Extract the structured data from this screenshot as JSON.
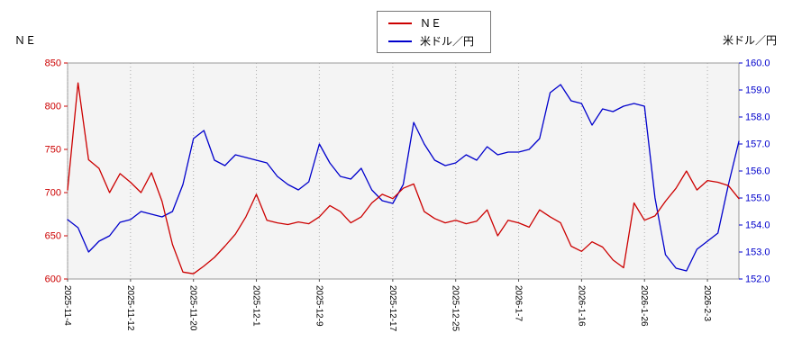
{
  "chart_data": {
    "type": "line",
    "title": "",
    "legend_position": "top-center",
    "grid": "vertical-dotted",
    "plot_bg": "#f4f4f4",
    "plot_border_color": "#999999",
    "x_tick_labels": [
      "2025-11-4",
      "2025-11-12",
      "2025-11-20",
      "2025-12-1",
      "2025-12-9",
      "2025-12-17",
      "2025-12-25",
      "2026-1-7",
      "2026-1-16",
      "2026-1-26",
      "2026-2-3"
    ],
    "x_tick_indices": [
      0,
      6,
      12,
      18,
      24,
      31,
      37,
      43,
      49,
      55,
      61
    ],
    "left_axis": {
      "title": "ＮＥ",
      "min": 600,
      "max": 850,
      "ticks": [
        850,
        800,
        750,
        700,
        650,
        600
      ],
      "color": "#cc0000"
    },
    "right_axis": {
      "title": "米ドル／円",
      "min": 152.0,
      "max": 160.0,
      "ticks": [
        "160.0",
        "159.0",
        "158.0",
        "157.0",
        "156.0",
        "155.0",
        "154.0",
        "153.0",
        "152.0"
      ],
      "color": "#0000cc"
    },
    "series": [
      {
        "name": "ＮＥ",
        "axis": "left",
        "color": "#cc0000",
        "values": [
          703,
          827,
          738,
          728,
          700,
          722,
          712,
          700,
          723,
          690,
          640,
          608,
          606,
          615,
          625,
          638,
          652,
          672,
          698,
          668,
          665,
          663,
          666,
          664,
          672,
          685,
          678,
          665,
          672,
          688,
          698,
          693,
          705,
          710,
          678,
          670,
          665,
          668,
          664,
          667,
          680,
          650,
          668,
          665,
          660,
          680,
          672,
          665,
          638,
          632,
          643,
          637,
          622,
          613,
          688,
          668,
          673,
          690,
          705,
          725,
          703,
          714,
          712,
          708,
          693
        ]
      },
      {
        "name": "米ドル／円",
        "axis": "right",
        "color": "#0000cc",
        "values": [
          154.2,
          153.9,
          153.0,
          153.4,
          153.6,
          154.1,
          154.2,
          154.5,
          154.4,
          154.3,
          154.5,
          155.5,
          157.2,
          157.5,
          156.4,
          156.2,
          156.6,
          156.5,
          156.4,
          156.3,
          155.8,
          155.5,
          155.3,
          155.6,
          157.0,
          156.3,
          155.8,
          155.7,
          156.1,
          155.3,
          154.9,
          154.8,
          155.5,
          157.8,
          157.0,
          156.4,
          156.2,
          156.3,
          156.6,
          156.4,
          156.9,
          156.6,
          156.7,
          156.7,
          156.8,
          157.2,
          158.9,
          159.2,
          158.6,
          158.5,
          157.7,
          158.3,
          158.2,
          158.4,
          158.5,
          158.4,
          155.0,
          152.9,
          152.4,
          152.3,
          153.1,
          153.4,
          153.7,
          155.5,
          157.1
        ]
      }
    ]
  }
}
